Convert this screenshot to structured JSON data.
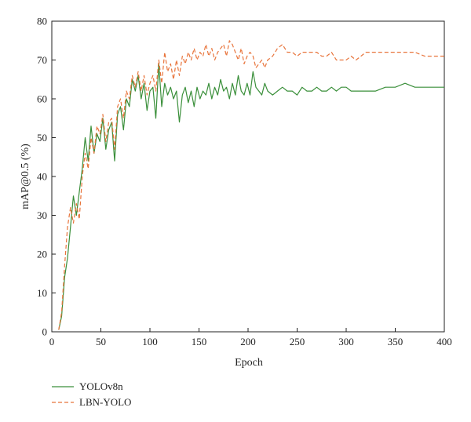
{
  "chart_data": {
    "type": "line",
    "xlabel": "Epoch",
    "ylabel": "mAP@0.5 (%)",
    "xlim": [
      0,
      400
    ],
    "ylim": [
      0,
      80
    ],
    "xticks": [
      0,
      50,
      100,
      150,
      200,
      250,
      300,
      350,
      400
    ],
    "yticks": [
      0,
      10,
      20,
      30,
      40,
      50,
      60,
      70,
      80
    ],
    "grid": false,
    "legend_position": "bottom-left",
    "series": [
      {
        "name": "YOLOv8n",
        "color": "#3a8f3a",
        "style": "solid",
        "x": [
          7,
          10,
          13,
          16,
          19,
          22,
          25,
          28,
          31,
          34,
          37,
          40,
          43,
          46,
          49,
          52,
          55,
          58,
          61,
          64,
          67,
          70,
          73,
          76,
          79,
          82,
          85,
          88,
          91,
          94,
          97,
          100,
          103,
          106,
          109,
          112,
          115,
          118,
          121,
          124,
          127,
          130,
          133,
          136,
          139,
          142,
          145,
          148,
          151,
          154,
          157,
          160,
          163,
          166,
          169,
          172,
          175,
          178,
          181,
          184,
          187,
          190,
          193,
          196,
          199,
          202,
          205,
          208,
          211,
          214,
          217,
          220,
          225,
          230,
          235,
          240,
          245,
          250,
          255,
          260,
          265,
          270,
          275,
          280,
          285,
          290,
          295,
          300,
          305,
          310,
          315,
          320,
          330,
          340,
          350,
          360,
          370,
          380,
          390,
          400
        ],
        "values": [
          0.5,
          4,
          14,
          19,
          27,
          35,
          30,
          36,
          42,
          50,
          44,
          53,
          46,
          51,
          49,
          55,
          47,
          52,
          54,
          44,
          56,
          58,
          52,
          60,
          58,
          65,
          62,
          66,
          60,
          64,
          57,
          62,
          63,
          55,
          69,
          58,
          64,
          61,
          63,
          60,
          62,
          54,
          61,
          63,
          59,
          62,
          58,
          63,
          60,
          62,
          61,
          64,
          60,
          63,
          61,
          65,
          62,
          63,
          60,
          64,
          61,
          66,
          62,
          61,
          64,
          61,
          67,
          63,
          62,
          61,
          64,
          62,
          61,
          62,
          63,
          62,
          62,
          61,
          63,
          62,
          62,
          63,
          62,
          62,
          63,
          62,
          63,
          63,
          62,
          62,
          62,
          62,
          62,
          63,
          63,
          64,
          63,
          63,
          63,
          63
        ]
      },
      {
        "name": "LBN-YOLO",
        "color": "#e8743b",
        "style": "dashed",
        "x": [
          7,
          10,
          13,
          16,
          19,
          22,
          25,
          28,
          31,
          34,
          37,
          40,
          43,
          46,
          49,
          52,
          55,
          58,
          61,
          64,
          67,
          70,
          73,
          76,
          79,
          82,
          85,
          88,
          91,
          94,
          97,
          100,
          103,
          106,
          109,
          112,
          115,
          118,
          121,
          124,
          127,
          130,
          133,
          136,
          139,
          142,
          145,
          148,
          151,
          154,
          157,
          160,
          163,
          166,
          169,
          172,
          175,
          178,
          181,
          184,
          187,
          190,
          193,
          196,
          199,
          202,
          205,
          208,
          211,
          214,
          217,
          220,
          225,
          230,
          235,
          240,
          245,
          250,
          255,
          260,
          265,
          270,
          275,
          280,
          285,
          290,
          295,
          300,
          305,
          310,
          315,
          320,
          330,
          340,
          350,
          360,
          370,
          380,
          390,
          400
        ],
        "values": [
          0.5,
          5,
          17,
          27,
          32,
          28,
          33,
          29,
          40,
          46,
          42,
          50,
          46,
          53,
          51,
          56,
          49,
          54,
          55,
          47,
          58,
          60,
          55,
          62,
          60,
          66,
          63,
          67,
          62,
          66,
          61,
          64,
          66,
          62,
          70,
          64,
          72,
          67,
          69,
          65,
          70,
          66,
          71,
          69,
          72,
          70,
          73,
          70,
          72,
          71,
          74,
          71,
          73,
          70,
          72,
          73,
          74,
          71,
          75,
          74,
          72,
          70,
          73,
          69,
          71,
          72,
          71,
          68,
          69,
          70,
          68,
          70,
          71,
          73,
          74,
          72,
          72,
          71,
          72,
          72,
          72,
          72,
          71,
          71,
          72,
          70,
          70,
          70,
          71,
          70,
          71,
          72,
          72,
          72,
          72,
          72,
          72,
          71,
          71,
          71
        ]
      }
    ]
  }
}
